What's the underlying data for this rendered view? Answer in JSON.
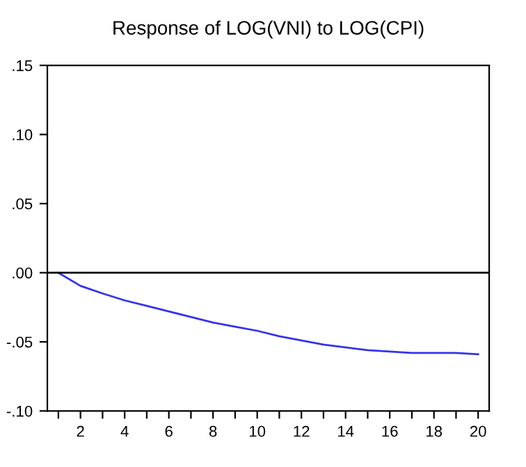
{
  "chart_data": {
    "type": "line",
    "title": "Response of LOG(VNI) to LOG(CPI)",
    "x": [
      1,
      2,
      3,
      4,
      5,
      6,
      7,
      8,
      9,
      10,
      11,
      12,
      13,
      14,
      15,
      16,
      17,
      18,
      19,
      20
    ],
    "series": [
      {
        "color": "#3333ee",
        "values": [
          0,
          -0.0095,
          -0.015,
          -0.02,
          -0.024,
          -0.028,
          -0.032,
          -0.036,
          -0.039,
          -0.042,
          -0.046,
          -0.049,
          -0.052,
          -0.054,
          -0.056,
          -0.057,
          -0.058,
          -0.058,
          -0.058,
          -0.059
        ]
      }
    ],
    "xlim": [
      0.5,
      20.5
    ],
    "xticks": [
      {
        "value": 1,
        "label": null
      },
      2,
      {
        "value": 3,
        "label": null
      },
      4,
      {
        "value": 5,
        "label": null
      },
      6,
      {
        "value": 7,
        "label": null
      },
      8,
      {
        "value": 9,
        "label": null
      },
      10,
      {
        "value": 11,
        "label": null
      },
      12,
      {
        "value": 13,
        "label": null
      },
      14,
      {
        "value": 15,
        "label": null
      },
      16,
      {
        "value": 17,
        "label": null
      },
      18,
      {
        "value": 19,
        "label": null
      },
      20
    ],
    "ylim": [
      -0.1,
      0.15
    ],
    "yticks": [
      {
        "value": -0.1,
        "label": "-.10"
      },
      {
        "value": -0.05,
        "label": "-.05"
      },
      {
        "value": 0,
        "label": ".00"
      },
      {
        "value": 0.05,
        "label": ".05"
      },
      {
        "value": 0.1,
        "label": ".10"
      },
      {
        "value": 0.15,
        "label": ".15"
      }
    ],
    "ref_lines": [
      {
        "axis": "y",
        "value": 0,
        "color": "#000000"
      }
    ],
    "grid": false,
    "legend": false,
    "marker": "none",
    "line_style": "solid"
  }
}
